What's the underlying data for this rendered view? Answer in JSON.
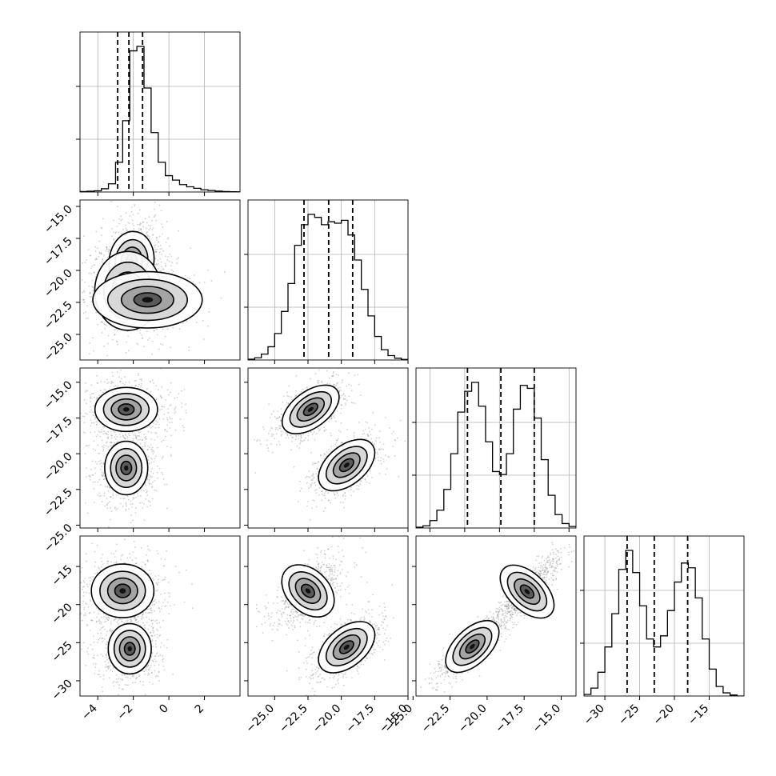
{
  "chart_data": {
    "type": "corner",
    "grid": true,
    "quantiles_shown": [
      0.16,
      0.5,
      0.84
    ],
    "panels": [
      {
        "kind": "histogram",
        "row": 0,
        "col": 0,
        "xlim": [
          -5,
          4
        ],
        "bins": {
          "start": -5,
          "width": 0.4,
          "counts": [
            0.3,
            0.5,
            0.8,
            2.2,
            5.5,
            20,
            48,
            95,
            98,
            70,
            40,
            20,
            11,
            8,
            5,
            3.5,
            2.5,
            1.5,
            1,
            0.6,
            0.3,
            0.2,
            0.1
          ]
        },
        "quantiles": [
          -2.88,
          -2.25,
          -1.48
        ]
      },
      {
        "kind": "histogram",
        "row": 1,
        "col": 1,
        "xlim": [
          -27,
          -15
        ],
        "bins": {
          "start": -27,
          "width": 0.5,
          "counts": [
            0.5,
            1.5,
            4,
            9,
            18,
            33,
            52,
            78,
            92,
            99,
            97,
            92,
            94,
            93,
            95,
            85,
            68,
            48,
            30,
            16,
            7,
            3,
            1.2,
            0.4
          ]
        },
        "quantiles": [
          -22.8,
          -20.95,
          -19.15
        ]
      },
      {
        "kind": "histogram",
        "row": 2,
        "col": 2,
        "xlim": [
          -26,
          -14.5
        ],
        "bins": {
          "start": -26,
          "width": 0.5,
          "counts": [
            0.5,
            1.5,
            5,
            12,
            26,
            50,
            78,
            92,
            98,
            82,
            58,
            38,
            36,
            50,
            80,
            96,
            94,
            74,
            46,
            22,
            9,
            3,
            1
          ]
        },
        "quantiles": [
          -22.3,
          -19.9,
          -17.5
        ]
      },
      {
        "kind": "histogram",
        "row": 3,
        "col": 3,
        "xlim": [
          -33,
          -10
        ],
        "bins": {
          "start": -33,
          "width": 1,
          "counts": [
            1,
            5,
            15,
            31,
            52,
            80,
            92,
            78,
            57,
            36,
            31,
            38,
            54,
            72,
            84,
            81,
            62,
            36,
            17,
            6,
            2,
            0.6
          ]
        },
        "quantiles": [
          -26.8,
          -22.9,
          -18.1
        ]
      },
      {
        "kind": "density2d",
        "row": 1,
        "col": 0,
        "xlim": [
          -5,
          4
        ],
        "ylim": [
          -27,
          -14.5
        ],
        "modes": [
          {
            "mx": -2.1,
            "my": -19.3,
            "sx": 0.55,
            "sy": 1.1,
            "rho": 0.1,
            "w": 0.55
          },
          {
            "mx": -2.3,
            "my": -21.6,
            "sx": 0.85,
            "sy": 1.4,
            "rho": 0.0,
            "w": 0.35
          },
          {
            "mx": -1.2,
            "my": -22.3,
            "sx": 1.4,
            "sy": 1.0,
            "rho": 0.0,
            "w": 0.1
          }
        ]
      },
      {
        "kind": "density2d",
        "row": 2,
        "col": 0,
        "xlim": [
          -5,
          4
        ],
        "ylim": [
          -25.2,
          -14
        ],
        "modes": [
          {
            "mx": -2.4,
            "my": -16.9,
            "sx": 0.8,
            "sy": 0.7,
            "rho": 0.0,
            "w": 0.48
          },
          {
            "mx": -2.4,
            "my": -21.0,
            "sx": 0.55,
            "sy": 0.85,
            "rho": 0.0,
            "w": 0.52
          }
        ]
      },
      {
        "kind": "density2d",
        "row": 3,
        "col": 0,
        "xlim": [
          -5,
          4
        ],
        "ylim": [
          -32,
          -11
        ],
        "modes": [
          {
            "mx": -2.6,
            "my": -18.2,
            "sx": 0.8,
            "sy": 1.6,
            "rho": 0.0,
            "w": 0.48
          },
          {
            "mx": -2.2,
            "my": -25.8,
            "sx": 0.55,
            "sy": 1.5,
            "rho": 0.0,
            "w": 0.52
          }
        ]
      },
      {
        "kind": "density2d",
        "row": 2,
        "col": 1,
        "xlim": [
          -27,
          -15
        ],
        "ylim": [
          -25.2,
          -14
        ],
        "modes": [
          {
            "mx": -22.3,
            "my": -16.9,
            "sx": 0.9,
            "sy": 0.7,
            "rho": 0.6,
            "w": 0.48
          },
          {
            "mx": -19.6,
            "my": -20.8,
            "sx": 0.9,
            "sy": 0.75,
            "rho": 0.6,
            "w": 0.52
          }
        ]
      },
      {
        "kind": "density2d",
        "row": 3,
        "col": 1,
        "xlim": [
          -27,
          -15
        ],
        "ylim": [
          -32,
          -11
        ],
        "modes": [
          {
            "mx": -22.5,
            "my": -18.2,
            "sx": 0.85,
            "sy": 1.5,
            "rho": 0.55,
            "w": 0.48
          },
          {
            "mx": -19.6,
            "my": -25.6,
            "sx": 0.9,
            "sy": 1.4,
            "rho": 0.6,
            "w": 0.52
          }
        ]
      },
      {
        "kind": "density2d",
        "row": 3,
        "col": 2,
        "xlim": [
          -24.8,
          -14
        ],
        "ylim": [
          -32,
          -11
        ],
        "modes": [
          {
            "mx": -21.0,
            "my": -25.5,
            "sx": 0.75,
            "sy": 1.4,
            "rho": 0.85,
            "w": 0.52
          },
          {
            "mx": -17.3,
            "my": -18.3,
            "sx": 0.75,
            "sy": 1.5,
            "rho": 0.85,
            "w": 0.48
          }
        ]
      }
    ],
    "x_tick_labels": [
      [
        "−4",
        "−2",
        "0",
        "2"
      ],
      [
        "−25.0",
        "−22.5",
        "−20.0",
        "−17.5",
        "−15.0"
      ],
      [
        "−25.0",
        "−22.5",
        "−20.0",
        "−17.5",
        "−15.0"
      ],
      [
        "−30",
        "−25",
        "−20",
        "−15"
      ]
    ],
    "y_tick_labels": [
      [
        "−15.0",
        "−17.5",
        "−20.0",
        "−22.5",
        "−25.0"
      ],
      [
        "−15.0",
        "−17.5",
        "−20.0",
        "−22.5",
        "−25.0"
      ],
      [
        "−15",
        "−20",
        "−25",
        "−30"
      ]
    ],
    "x_ticks": [
      [
        -4,
        -2,
        0,
        2
      ],
      [
        -25,
        -22.5,
        -20,
        -17.5,
        -15
      ],
      [
        -25,
        -22.5,
        -20,
        -17.5,
        -15
      ],
      [
        -30,
        -25,
        -20,
        -15
      ]
    ],
    "y_ticks": [
      [
        -15,
        -17.5,
        -20,
        -22.5,
        -25
      ],
      [
        -15,
        -17.5,
        -20,
        -22.5,
        -25
      ],
      [
        -15,
        -20,
        -25,
        -30
      ]
    ]
  }
}
